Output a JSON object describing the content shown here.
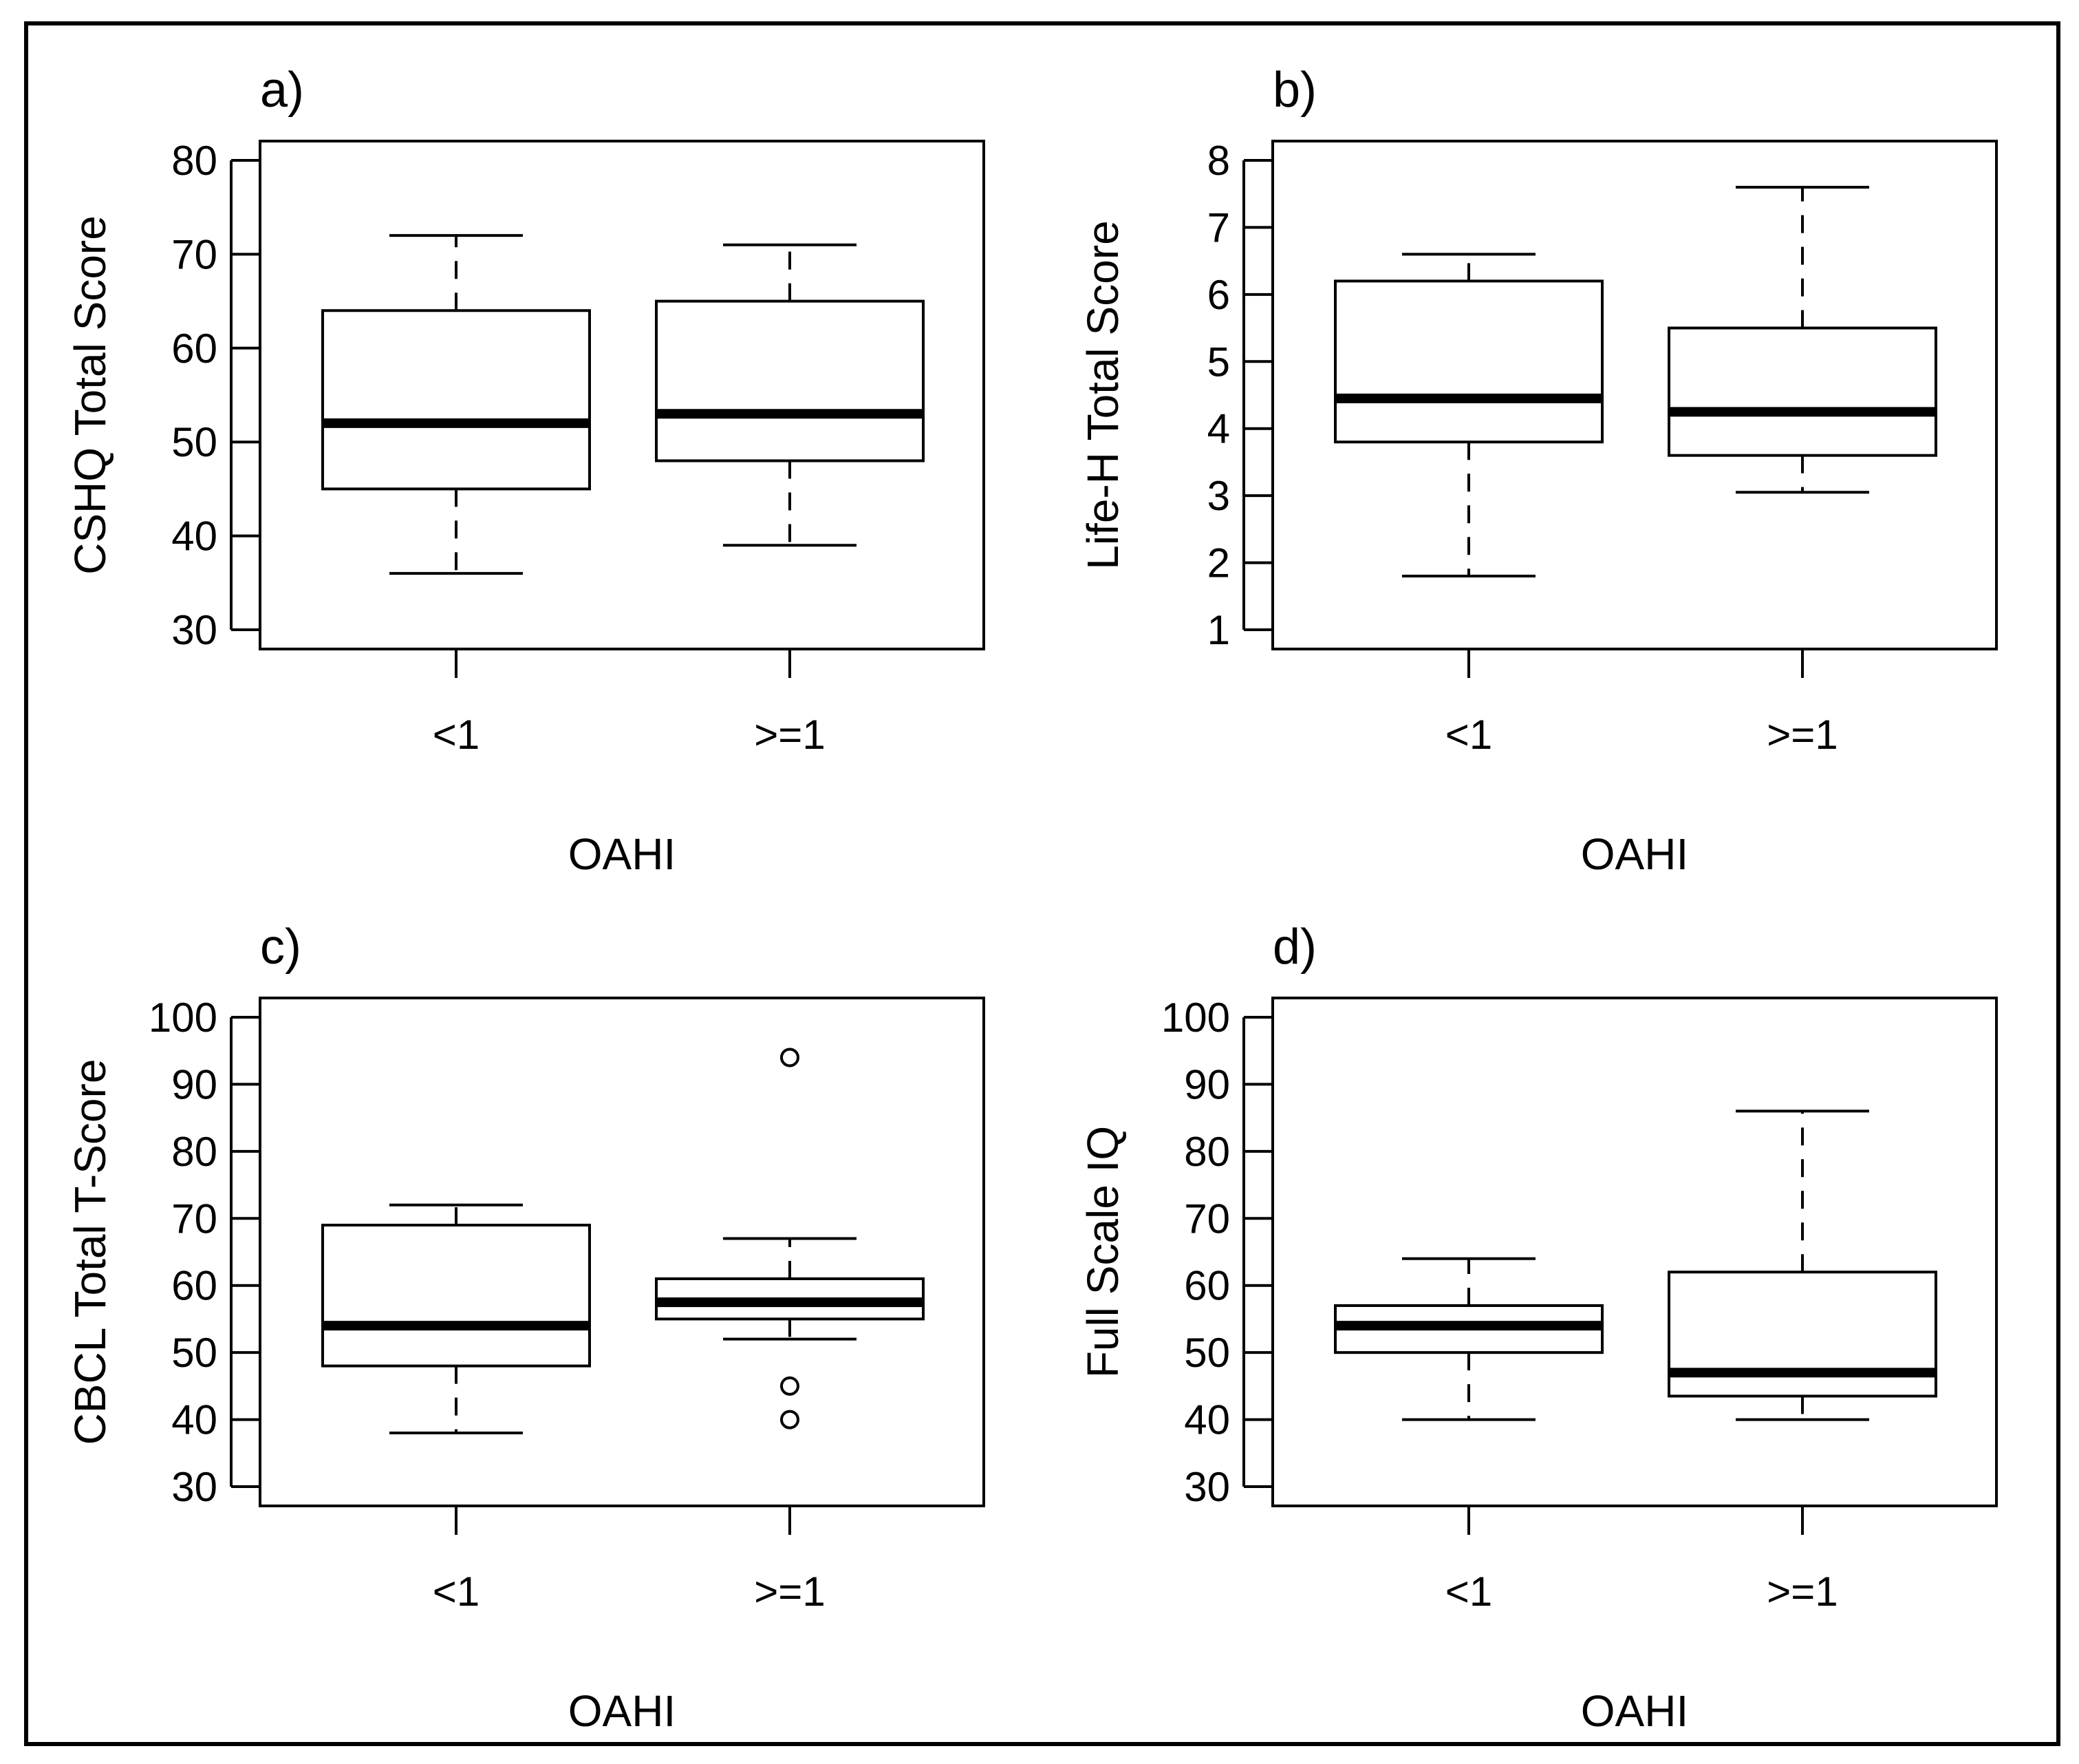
{
  "chart_data": [
    {
      "type": "boxplot",
      "panel": "a)",
      "xlabel": "OAHI",
      "ylabel": "CSHQ Total Score",
      "ylim": [
        30,
        80
      ],
      "yticks": [
        30,
        40,
        50,
        60,
        70,
        80
      ],
      "categories": [
        "<1",
        ">=1"
      ],
      "boxes": [
        {
          "category": "<1",
          "whisker_low": 36,
          "q1": 45,
          "median": 52,
          "q3": 64,
          "whisker_high": 72,
          "outliers": []
        },
        {
          "category": ">=1",
          "whisker_low": 39,
          "q1": 48,
          "median": 53,
          "q3": 65,
          "whisker_high": 71,
          "outliers": []
        }
      ]
    },
    {
      "type": "boxplot",
      "panel": "b)",
      "xlabel": "OAHI",
      "ylabel": "Life-H Total Score",
      "ylim": [
        1,
        8
      ],
      "yticks": [
        1,
        2,
        3,
        4,
        5,
        6,
        7,
        8
      ],
      "categories": [
        "<1",
        ">=1"
      ],
      "boxes": [
        {
          "category": "<1",
          "whisker_low": 1.8,
          "q1": 3.8,
          "median": 4.45,
          "q3": 6.2,
          "whisker_high": 6.6,
          "outliers": []
        },
        {
          "category": ">=1",
          "whisker_low": 3.05,
          "q1": 3.6,
          "median": 4.25,
          "q3": 5.5,
          "whisker_high": 7.6,
          "outliers": []
        }
      ]
    },
    {
      "type": "boxplot",
      "panel": "c)",
      "xlabel": "OAHI",
      "ylabel": "CBCL Total T-Score",
      "ylim": [
        30,
        100
      ],
      "yticks": [
        30,
        40,
        50,
        60,
        70,
        80,
        90,
        100
      ],
      "categories": [
        "<1",
        ">=1"
      ],
      "boxes": [
        {
          "category": "<1",
          "whisker_low": 38,
          "q1": 48,
          "median": 54,
          "q3": 69,
          "whisker_high": 72,
          "outliers": []
        },
        {
          "category": ">=1",
          "whisker_low": 52,
          "q1": 55,
          "median": 57.5,
          "q3": 61,
          "whisker_high": 67,
          "outliers": [
            94,
            45,
            40
          ]
        }
      ]
    },
    {
      "type": "boxplot",
      "panel": "d)",
      "xlabel": "OAHI",
      "ylabel": "Full Scale IQ",
      "ylim": [
        30,
        100
      ],
      "yticks": [
        30,
        40,
        50,
        60,
        70,
        80,
        90,
        100
      ],
      "categories": [
        "<1",
        ">=1"
      ],
      "boxes": [
        {
          "category": "<1",
          "whisker_low": 40,
          "q1": 50,
          "median": 54,
          "q3": 57,
          "whisker_high": 64,
          "outliers": []
        },
        {
          "category": ">=1",
          "whisker_low": 40,
          "q1": 43.5,
          "median": 47,
          "q3": 62,
          "whisker_high": 86,
          "outliers": []
        }
      ]
    }
  ]
}
